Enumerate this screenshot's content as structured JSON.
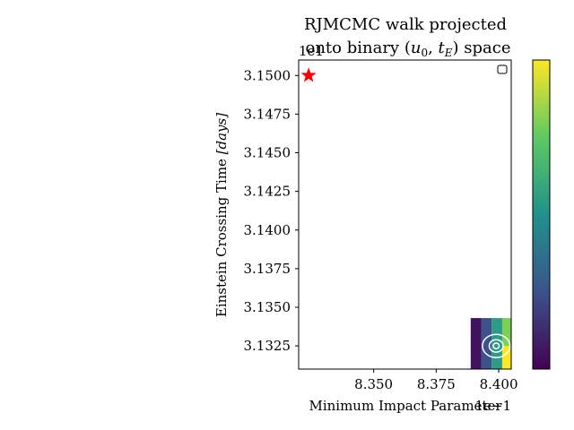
{
  "chart_data": {
    "type": "heatmap",
    "title_line1": "RJMCMC walk projected",
    "title_line2_pre": "onto binary (",
    "title_line2_post": ") space",
    "title_u0": "u",
    "title_u0_sub": "0",
    "title_sep": ", ",
    "title_tE": "t",
    "title_tE_sub": "E",
    "xlabel": "Minimum Impact Parameter",
    "ylabel_prefix": "Einstein Crossing Time ",
    "ylabel_unit": "[days]",
    "x_offset_label": "1e−1",
    "y_offset_label": "1e1",
    "xlim": [
      8.32,
      8.405
    ],
    "ylim": [
      3.131,
      3.151
    ],
    "x_ticks": [
      8.35,
      8.375,
      8.4
    ],
    "x_tick_labels": [
      "8.350",
      "8.375",
      "8.400"
    ],
    "y_ticks": [
      3.1325,
      3.135,
      3.1375,
      3.14,
      3.1425,
      3.145,
      3.1475,
      3.15
    ],
    "y_tick_labels": [
      "3.1325",
      "3.1350",
      "3.1375",
      "3.1400",
      "3.1425",
      "3.1450",
      "3.1475",
      "3.1500"
    ],
    "true_point": {
      "x": 8.324,
      "y": 3.15,
      "marker": "star",
      "color": "#ff0000"
    },
    "heatmap_y_range": [
      3.131,
      3.1343
    ],
    "heatmap_columns": [
      {
        "x0": 8.3888,
        "x1": 8.393,
        "value": 0.05
      },
      {
        "x0": 8.393,
        "x1": 8.3972,
        "value": 0.25
      },
      {
        "x0": 8.3972,
        "x1": 8.4014,
        "value": 0.55
      },
      {
        "x0": 8.4014,
        "x1": 8.405,
        "value": 0.8
      }
    ],
    "heatmap_cells": [
      {
        "x0": 8.4014,
        "x1": 8.405,
        "y0": 3.131,
        "y1": 3.1325,
        "value": 1.0
      }
    ],
    "contour_center": {
      "x": 8.399,
      "y": 3.1325
    },
    "contours": [
      {
        "rx": 0.0055,
        "ry": 0.00075
      },
      {
        "rx": 0.0028,
        "ry": 0.0004
      },
      {
        "rx": 0.0012,
        "ry": 0.00018
      }
    ],
    "colormap": [
      "#440154",
      "#3b528b",
      "#21918c",
      "#5ec962",
      "#fde725"
    ],
    "colorbar_ticks": [],
    "grid": false,
    "legend": "top-right",
    "legend_entries": []
  }
}
